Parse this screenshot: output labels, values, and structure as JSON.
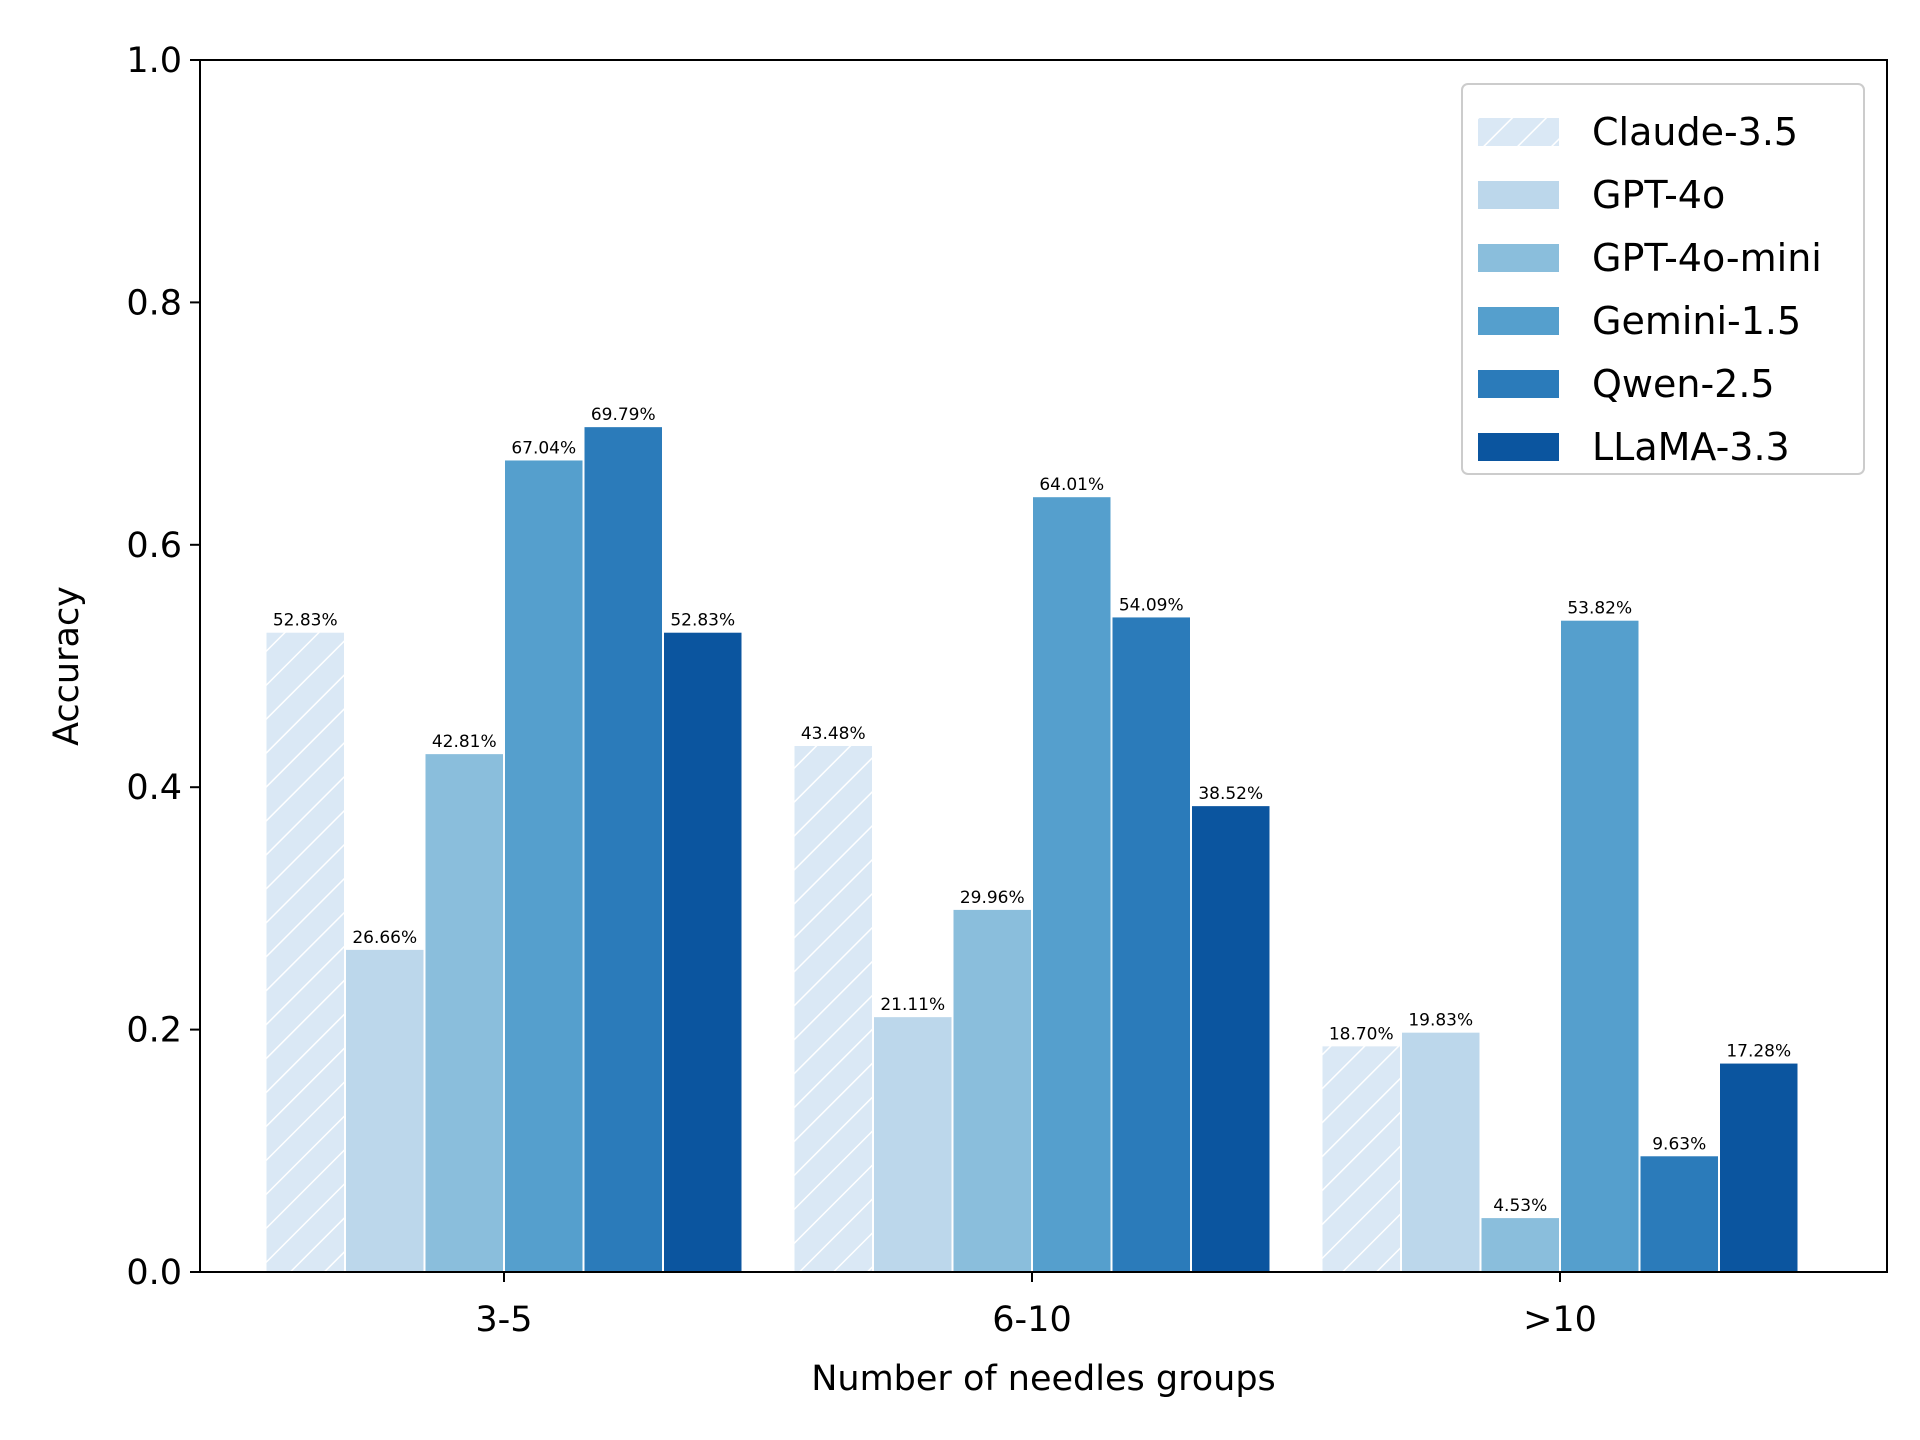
{
  "chart_data": {
    "type": "bar",
    "title": "",
    "xlabel": "Number of needles groups",
    "ylabel": "Accuracy",
    "ylim": [
      0,
      1.0
    ],
    "yticks": [
      "0.0",
      "0.2",
      "0.4",
      "0.6",
      "0.8",
      "1.0"
    ],
    "categories": [
      "3-5",
      "6-10",
      ">10"
    ],
    "legend_position": "top-right",
    "grid": false,
    "series": [
      {
        "name": "Claude-3.5",
        "color": "#dae8f5",
        "hatch": true,
        "values": [
          0.5283,
          0.4348,
          0.187
        ],
        "labels": [
          "52.83%",
          "43.48%",
          "18.70%"
        ]
      },
      {
        "name": "GPT-4o",
        "color": "#bcd7eb",
        "hatch": false,
        "values": [
          0.2666,
          0.2111,
          0.1983
        ],
        "labels": [
          "26.66%",
          "21.11%",
          "19.83%"
        ]
      },
      {
        "name": "GPT-4o-mini",
        "color": "#8abedc",
        "hatch": false,
        "values": [
          0.4281,
          0.2996,
          0.0453
        ],
        "labels": [
          "42.81%",
          "29.96%",
          "4.53%"
        ]
      },
      {
        "name": "Gemini-1.5",
        "color": "#559fcd",
        "hatch": false,
        "values": [
          0.6704,
          0.6401,
          0.5382
        ],
        "labels": [
          "67.04%",
          "64.01%",
          "53.82%"
        ]
      },
      {
        "name": "Qwen-2.5",
        "color": "#2b7bba",
        "hatch": false,
        "values": [
          0.6979,
          0.5409,
          0.0963
        ],
        "labels": [
          "69.79%",
          "54.09%",
          "9.63%"
        ]
      },
      {
        "name": "LLaMA-3.3",
        "color": "#0b559f",
        "hatch": false,
        "values": [
          0.5283,
          0.3852,
          0.1728
        ],
        "labels": [
          "52.83%",
          "38.52%",
          "17.28%"
        ]
      }
    ]
  }
}
